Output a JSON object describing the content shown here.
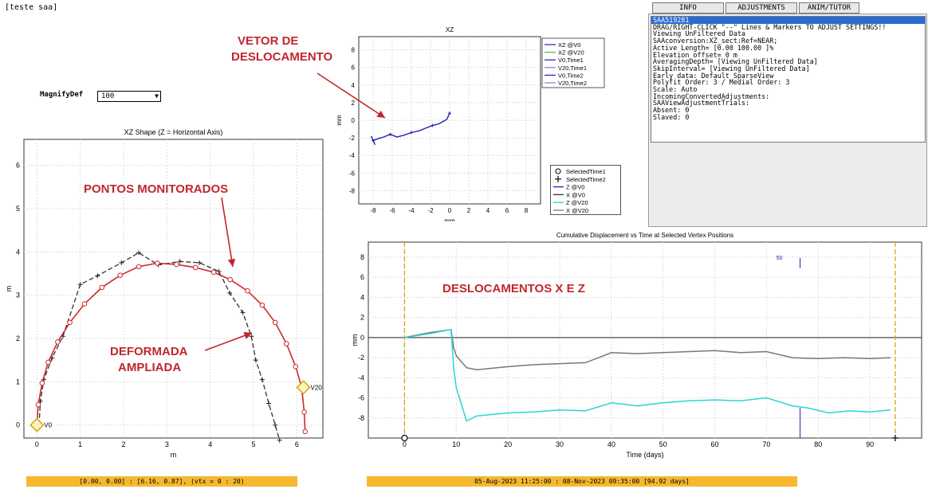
{
  "window": {
    "title": "[teste saa]"
  },
  "controls": {
    "magnify_label": "MagnifyDef",
    "magnify_value": "100"
  },
  "tabs": [
    "INFO",
    "ADJUSTMENTS",
    "ANIM/TUTOR"
  ],
  "info_lines": [
    "SAA519281",
    "DRAG/RIGHT-CLICK \"--\" Lines & Markers TO ADJUST SETTINGS!!",
    "Viewing UnFiltered Data",
    "SAAconversion:XZ_sect:Ref=NEAR;",
    "Active Length= [0.00 100.00 ]%",
    "Elevation offset= 0 m",
    "AveragingDepth= [Viewing UnFiltered Data]",
    "SkipInterval= [Viewing UnFiltered Data]",
    "Early data: Default SparseView",
    "Polyfit Order: 3 / Medial Order: 3",
    "Scale: Auto",
    "IncomingConvertedAdjustments:",
    "SAAViewAdjustmentTrials:",
    "Absent: 0",
    "Slaved: 0"
  ],
  "annotations": {
    "vetor": [
      "VETOR DE",
      "DESLOCAMENTO"
    ],
    "pontos": "PONTOS MONITORADOS",
    "deformada": [
      "DEFORMADA",
      "AMPLIADA"
    ],
    "deslocamentos": "DESLOCAMENTOS X E Z"
  },
  "footer": {
    "left": "[0.00, 0.00] : [6.16, 0.87], (vtx = 0 : 20)",
    "right": "05-Aug-2023 11:25:00 : 08-Nov-2023 09:35:00 [94.92 days]"
  },
  "colors": {
    "red_line": "#cc2a2a",
    "blue_line": "#1f1fb8",
    "cyan": "#28d6d6",
    "gray": "#777777",
    "marker": "#d6a21e",
    "annotation": "#c0272d"
  },
  "chart_data": [
    {
      "type": "line",
      "title": "XZ Shape (Z = Horizontal Axis)",
      "xlabel": "m",
      "ylabel": "m",
      "xlim": [
        -0.3,
        6.6
      ],
      "ylim": [
        -0.3,
        6.6
      ],
      "x_ticks": [
        0,
        1,
        2,
        3,
        4,
        5,
        6
      ],
      "y_ticks": [
        0,
        1,
        2,
        3,
        4,
        5,
        6
      ],
      "series": [
        {
          "role": "shape",
          "x": [
            0,
            0.03,
            0.12,
            0.26,
            0.48,
            0.76,
            1.1,
            1.5,
            1.92,
            2.35,
            2.78,
            3.22,
            3.66,
            4.08,
            4.46,
            4.86,
            5.2,
            5.5,
            5.76,
            5.97,
            6.11,
            6.17,
            6.19
          ],
          "y": [
            0,
            0.47,
            0.97,
            1.45,
            1.92,
            2.37,
            2.8,
            3.18,
            3.46,
            3.66,
            3.74,
            3.71,
            3.64,
            3.53,
            3.36,
            3.1,
            2.77,
            2.37,
            1.88,
            1.35,
            0.87,
            0.3,
            -0.15
          ]
        },
        {
          "role": "deformed",
          "x": [
            0.05,
            0.08,
            0.16,
            0.35,
            0.6,
            1.0,
            1.4,
            1.95,
            2.35,
            2.8,
            3.3,
            3.75,
            4.2,
            4.45,
            4.75,
            4.95,
            5.05,
            5.2,
            5.35,
            5.5,
            5.6
          ],
          "y": [
            0,
            0.55,
            1.05,
            1.55,
            2.05,
            3.25,
            3.45,
            3.75,
            3.98,
            3.7,
            3.78,
            3.75,
            3.55,
            3.05,
            2.6,
            2.05,
            1.5,
            1.05,
            0.5,
            0.0,
            -0.35
          ]
        }
      ],
      "markers": [
        {
          "label": "V0",
          "x": 0,
          "y": 0
        },
        {
          "label": "V20",
          "x": 6.15,
          "y": 0.87
        }
      ]
    },
    {
      "type": "line",
      "title": "XZ",
      "xlabel": "mm",
      "ylabel": "mm",
      "xlim": [
        -9.5,
        9.5
      ],
      "ylim": [
        -9.5,
        9.5
      ],
      "x_ticks": [
        -8,
        -6,
        -4,
        -2,
        0,
        2,
        4,
        6,
        8
      ],
      "y_ticks": [
        -8,
        -6,
        -4,
        -2,
        0,
        2,
        4,
        6,
        8
      ],
      "legend": [
        "XZ @V0",
        "XZ @V20",
        "V0,Time1",
        "V20,Time1",
        "V0,Time2",
        "V20,Time2"
      ],
      "vector": {
        "x": [
          0,
          -0.3,
          -1.1,
          -1.8,
          -2.5,
          -3.2,
          -4.0,
          -4.8,
          -5.5,
          -6.2,
          -6.9,
          -7.5,
          -8.0,
          -7.8,
          -8.2
        ],
        "y": [
          0.8,
          0.1,
          -0.4,
          -0.6,
          -0.9,
          -1.2,
          -1.4,
          -1.7,
          -1.9,
          -1.6,
          -1.9,
          -2.1,
          -2.3,
          -2.8,
          -1.8
        ]
      }
    },
    {
      "type": "line",
      "title": "Cumulative Displacement vs Time at Selected Vertex Positions",
      "xlabel": "Time (days)",
      "ylabel": "mm",
      "xlim": [
        -7,
        100
      ],
      "ylim": [
        -10,
        9.5
      ],
      "x_ticks": [
        0,
        10,
        20,
        30,
        40,
        50,
        60,
        70,
        80,
        90
      ],
      "y_ticks": [
        -8,
        -6,
        -4,
        -2,
        0,
        2,
        4,
        6,
        8
      ],
      "legend": [
        "SelectedTime1",
        "SelectedTime2",
        "Z @V0",
        "X @V0",
        "Z @V20",
        "X @V20"
      ],
      "marker_label": "50",
      "series": [
        {
          "name": "X @V20",
          "x": [
            0,
            5,
            9,
            9.5,
            10,
            12,
            14,
            20,
            25,
            30,
            35,
            40,
            45,
            50,
            55,
            60,
            65,
            70,
            75,
            80,
            85,
            90,
            94
          ],
          "y": [
            0,
            0.5,
            0.8,
            -1.0,
            -1.8,
            -3.0,
            -3.2,
            -2.9,
            -2.7,
            -2.6,
            -2.5,
            -1.5,
            -1.6,
            -1.5,
            -1.4,
            -1.3,
            -1.5,
            -1.4,
            -2.0,
            -2.1,
            -2.0,
            -2.1,
            -2.0
          ]
        },
        {
          "name": "Z @V20",
          "x": [
            0,
            5,
            9,
            9.5,
            10,
            12,
            14,
            20,
            25,
            30,
            35,
            40,
            45,
            50,
            55,
            60,
            65,
            70,
            75,
            78,
            82,
            86,
            90,
            94
          ],
          "y": [
            0,
            0.4,
            0.8,
            -3.0,
            -5.0,
            -8.3,
            -7.8,
            -7.5,
            -7.4,
            -7.2,
            -7.3,
            -6.5,
            -6.8,
            -6.5,
            -6.3,
            -6.2,
            -6.3,
            -6.0,
            -6.8,
            -7.0,
            -7.5,
            -7.3,
            -7.4,
            -7.2
          ]
        }
      ]
    }
  ]
}
